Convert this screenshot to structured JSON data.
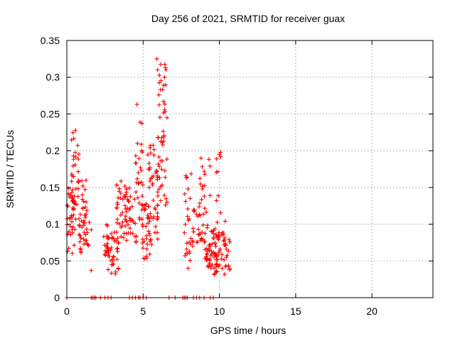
{
  "chart_data": {
    "type": "scatter",
    "title": "Day 256 of 2021, SRMTID for receiver guax",
    "xlabel": "GPS time / hours",
    "ylabel": "SRMTID / TECUs",
    "xlim": [
      0,
      24
    ],
    "ylim": [
      0,
      0.35
    ],
    "xticks": [
      0,
      5,
      10,
      15,
      20
    ],
    "xtick_labels": [
      "0",
      "5",
      "10",
      "15",
      "20"
    ],
    "yticks": [
      0,
      0.05,
      0.1,
      0.15,
      0.2,
      0.25,
      0.3,
      0.35
    ],
    "ytick_labels": [
      "0",
      "0.05",
      "0.1",
      "0.15",
      "0.2",
      "0.25",
      "0.3",
      "0.35"
    ],
    "grid": true,
    "marker": "+",
    "color": "#ff0000",
    "clusters": [
      {
        "x_range": [
          0.0,
          0.6
        ],
        "y_range": [
          0.06,
          0.15
        ],
        "count": 40
      },
      {
        "x_range": [
          0.3,
          0.8
        ],
        "y_range": [
          0.1,
          0.23
        ],
        "count": 30
      },
      {
        "x_range": [
          0.8,
          1.3
        ],
        "y_range": [
          0.06,
          0.16
        ],
        "count": 35
      },
      {
        "x_range": [
          1.2,
          1.6
        ],
        "y_range": [
          0.07,
          0.12
        ],
        "count": 10
      },
      {
        "x_range": [
          2.4,
          3.0
        ],
        "y_range": [
          0.05,
          0.1
        ],
        "count": 20
      },
      {
        "x_range": [
          2.7,
          3.4
        ],
        "y_range": [
          0.03,
          0.09
        ],
        "count": 30
      },
      {
        "x_range": [
          3.2,
          4.0
        ],
        "y_range": [
          0.06,
          0.16
        ],
        "count": 40
      },
      {
        "x_range": [
          3.8,
          4.6
        ],
        "y_range": [
          0.07,
          0.15
        ],
        "count": 30
      },
      {
        "x_range": [
          4.5,
          5.0
        ],
        "y_range": [
          0.08,
          0.24
        ],
        "count": 25
      },
      {
        "x_range": [
          4.9,
          5.5
        ],
        "y_range": [
          0.05,
          0.13
        ],
        "count": 35
      },
      {
        "x_range": [
          5.3,
          6.0
        ],
        "y_range": [
          0.06,
          0.21
        ],
        "count": 45
      },
      {
        "x_range": [
          5.8,
          6.6
        ],
        "y_range": [
          0.12,
          0.23
        ],
        "count": 30
      },
      {
        "x_range": [
          6.0,
          6.6
        ],
        "y_range": [
          0.2,
          0.32
        ],
        "count": 22
      },
      {
        "x_range": [
          7.7,
          8.2
        ],
        "y_range": [
          0.04,
          0.17
        ],
        "count": 25
      },
      {
        "x_range": [
          8.2,
          8.8
        ],
        "y_range": [
          0.07,
          0.13
        ],
        "count": 20
      },
      {
        "x_range": [
          8.7,
          9.4
        ],
        "y_range": [
          0.05,
          0.19
        ],
        "count": 30
      },
      {
        "x_range": [
          9.0,
          9.8
        ],
        "y_range": [
          0.04,
          0.1
        ],
        "count": 40
      },
      {
        "x_range": [
          9.8,
          10.4
        ],
        "y_range": [
          0.1,
          0.2
        ],
        "count": 10
      },
      {
        "x_range": [
          9.6,
          10.7
        ],
        "y_range": [
          0.03,
          0.09
        ],
        "count": 55
      }
    ],
    "points": [
      [
        0.0,
        0.0
      ],
      [
        1.6,
        0.037
      ],
      [
        4.6,
        0.263
      ],
      [
        5.9,
        0.325
      ],
      [
        5.95,
        0.31
      ],
      [
        6.5,
        0.31
      ],
      [
        6.4,
        0.3
      ],
      [
        3.2,
        0.035
      ],
      [
        7.95,
        0.04
      ],
      [
        10.4,
        0.043
      ],
      [
        10.6,
        0.043
      ],
      [
        4.3,
        0.105
      ],
      [
        10.0,
        0.195
      ],
      [
        9.45,
        0.04
      ]
    ],
    "zero_points": [
      1.6,
      1.7,
      1.8,
      1.9,
      2.2,
      2.5,
      2.7,
      2.9,
      4.1,
      4.3,
      4.5,
      4.7,
      4.8,
      5.0,
      5.2,
      6.7,
      7.1,
      7.6,
      7.7,
      7.8,
      7.9,
      8.3,
      8.5,
      8.7,
      9.0,
      9.4,
      9.6
    ]
  }
}
